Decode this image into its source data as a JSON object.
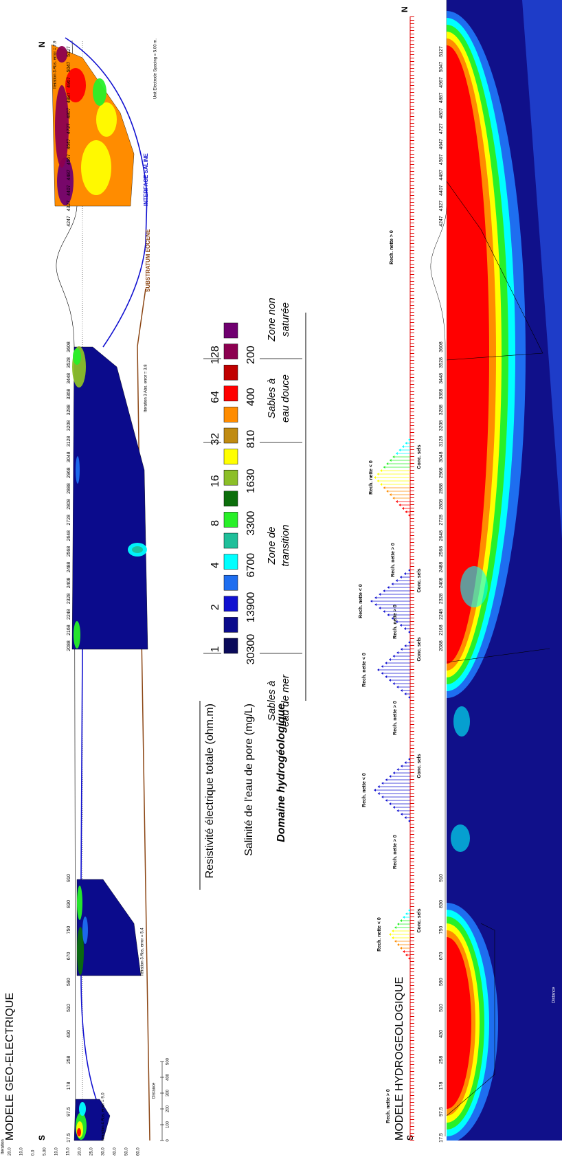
{
  "titles": {
    "geo": "MODELE GEO-ELECTRIQUE",
    "hydro": "MODELE HYDROGEOLOGIQUE"
  },
  "geo": {
    "south": "S",
    "north": "N",
    "iterations": [
      "Iteration 4 Abs. error = 9.0",
      "Iteration 3 Abs. error = 5.4",
      "Iteration 3 Abs. error = 3.8",
      "Iteration 3 Abs. error = 7.9"
    ],
    "substratum": "SUBSTRATUM EOCENE",
    "interface": "INTERFACE SALINE",
    "spacing": "Unit Electrode Spacing = 5.00 m.",
    "distance": "Distance",
    "scale": [
      0,
      100,
      200,
      300,
      400,
      500
    ],
    "depth_title": "Iteration",
    "depth_ticks": [
      "20.0",
      "10.0",
      "0.0",
      "5.00",
      "10.0",
      "15.0",
      "20.0",
      "25.0",
      "30.0",
      "40.0",
      "50.0",
      "60.0"
    ],
    "electrodes": [
      "17.5",
      "97.5",
      "178",
      "258",
      "430",
      "510",
      "590",
      "670",
      "750",
      "830",
      "910",
      "2088",
      "2168",
      "2248",
      "2328",
      "2408",
      "2488",
      "2568",
      "2648",
      "2728",
      "2808",
      "2888",
      "2968",
      "3048",
      "3128",
      "3208",
      "3288",
      "3368",
      "3448",
      "3528",
      "3608",
      "4247",
      "4327",
      "4407",
      "4487",
      "4567",
      "4647",
      "4727",
      "4807",
      "4887",
      "4967",
      "5047",
      "5127"
    ]
  },
  "legend": {
    "resistivity_label": "Resistivité électrique totale (ohm.m)",
    "resistivity": [
      1,
      2,
      4,
      8,
      16,
      32,
      64,
      128
    ],
    "salinity_label": "Salinité de l'eau de pore (mg/L)",
    "salinity": [
      30300,
      13900,
      6700,
      3300,
      1630,
      810,
      400,
      200
    ],
    "domain_label": "Domaine hydrogéologique",
    "domains": [
      [
        "Sables à",
        "eau de mer"
      ],
      [
        "Zone de",
        "transition"
      ],
      [
        "Sables à",
        "eau douce"
      ],
      [
        "Zone non",
        "saturée"
      ]
    ],
    "colors": [
      "#0a0a5a",
      "#0b0b8c",
      "#1010d0",
      "#1e6ef0",
      "#00ffff",
      "#1fbf9a",
      "#28f028",
      "#0b6e0b",
      "#8cbf28",
      "#ffff00",
      "#c08b12",
      "#ff8c00",
      "#ff0000",
      "#c00000",
      "#8c0050",
      "#700070"
    ]
  },
  "hydro": {
    "south": "S",
    "north": "N",
    "distance": "Distance",
    "annotations": [
      "Rech. nette > 0",
      "Rech. nette < 0",
      "Conc. sels",
      "Rech. nette > 0",
      "Rech. nette < 0",
      "Conc. sels",
      "Rech. nette > 0",
      "Rech. nette < 0",
      "Conc. sels",
      "Rech. nette > 0",
      "Rech. nette < 0",
      "Conc. sels",
      "Rech. nette > 0",
      "Rech. nette < 0",
      "Conc. sels",
      "Rech. nette > 0"
    ]
  }
}
